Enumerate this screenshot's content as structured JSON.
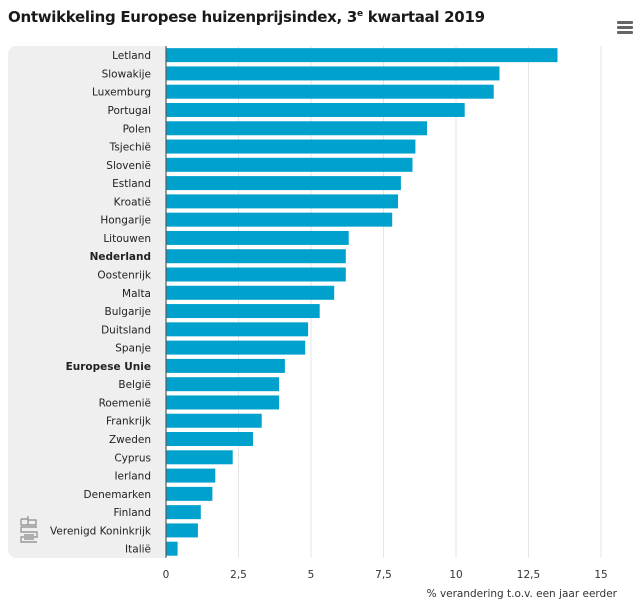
{
  "header": {
    "title_pre": "Ontwikkeling Europese huizenprijsindex, 3",
    "title_sup": "e",
    "title_post": " kwartaal 2019",
    "menu_icon": "hamburger-menu-icon"
  },
  "colors": {
    "bar": "#00a1cd",
    "label_bg": "#efefef",
    "grid": "#e6e6e6",
    "axis": "#555555"
  },
  "logo": {
    "icon": "cbs-logo-icon"
  },
  "chart_data": {
    "type": "bar",
    "orientation": "horizontal",
    "title": "Ontwikkeling Europese huizenprijsindex, 3e kwartaal 2019",
    "xlabel": "% verandering t.o.v. een jaar eerder",
    "ylabel": "",
    "xlim": [
      0,
      15
    ],
    "xticks": [
      0,
      2.5,
      5,
      7.5,
      10,
      12.5,
      15
    ],
    "xtick_labels": [
      "0",
      "2,5",
      "5",
      "7,5",
      "10",
      "12,5",
      "15"
    ],
    "grid": true,
    "categories": [
      "Letland",
      "Slowakije",
      "Luxemburg",
      "Portugal",
      "Polen",
      "Tsjechië",
      "Slovenië",
      "Estland",
      "Kroatië",
      "Hongarije",
      "Litouwen",
      "Nederland",
      "Oostenrijk",
      "Malta",
      "Bulgarije",
      "Duitsland",
      "Spanje",
      "Europese Unie",
      "België",
      "Roemenië",
      "Frankrijk",
      "Zweden",
      "Cyprus",
      "Ierland",
      "Denemarken",
      "Finland",
      "Verenigd Koninkrijk",
      "Italië"
    ],
    "bold_categories": [
      "Nederland",
      "Europese Unie"
    ],
    "values": [
      13.5,
      11.5,
      11.3,
      10.3,
      9.0,
      8.6,
      8.5,
      8.1,
      8.0,
      7.8,
      6.3,
      6.2,
      6.2,
      5.8,
      5.3,
      4.9,
      4.8,
      4.1,
      3.9,
      3.9,
      3.3,
      3.0,
      2.3,
      1.7,
      1.6,
      1.2,
      1.1,
      0.4
    ]
  }
}
